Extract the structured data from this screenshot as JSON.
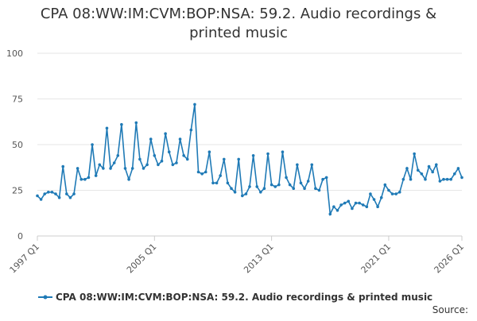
{
  "chart_data": {
    "type": "line",
    "title": "CPA 08:WW:IM:CVM:BOP:NSA: 59.2. Audio recordings & printed music",
    "source_label": "Source:",
    "categories": [
      "1997 Q1",
      null,
      null,
      null,
      null,
      null,
      null,
      null,
      null,
      null,
      null,
      null,
      null,
      null,
      null,
      null,
      null,
      null,
      null,
      null,
      null,
      null,
      null,
      null,
      null,
      null,
      null,
      null,
      null,
      null,
      null,
      null,
      "2005 Q1",
      null,
      null,
      null,
      null,
      null,
      null,
      null,
      null,
      null,
      null,
      null,
      null,
      null,
      null,
      null,
      null,
      null,
      null,
      null,
      null,
      null,
      null,
      null,
      null,
      null,
      null,
      null,
      null,
      null,
      null,
      null,
      "2013 Q1",
      null,
      null,
      null,
      null,
      null,
      null,
      null,
      null,
      null,
      null,
      null,
      null,
      null,
      null,
      null,
      null,
      null,
      null,
      null,
      null,
      null,
      null,
      null,
      null,
      null,
      null,
      null,
      null,
      null,
      null,
      null,
      "2021 Q1",
      null,
      null,
      null,
      null,
      null,
      null,
      null,
      null,
      null,
      null,
      null,
      null,
      null,
      null,
      null,
      null,
      null,
      null,
      null,
      "2026 Q1"
    ],
    "series": [
      {
        "name": "CPA 08:WW:IM:CVM:BOP:NSA: 59.2. Audio recordings & printed music",
        "color": "#1f7ab6",
        "values": [
          22,
          20,
          23,
          24,
          24,
          23,
          21,
          38,
          23,
          21,
          23,
          37,
          31,
          31,
          32,
          50,
          33,
          39,
          37,
          59,
          37,
          40,
          44,
          61,
          37,
          31,
          37,
          62,
          42,
          37,
          39,
          53,
          44,
          39,
          41,
          56,
          46,
          39,
          40,
          53,
          44,
          42,
          58,
          72,
          35,
          34,
          35,
          46,
          29,
          29,
          33,
          42,
          29,
          26,
          24,
          42,
          22,
          23,
          27,
          44,
          27,
          24,
          26,
          45,
          28,
          27,
          28,
          46,
          32,
          28,
          26,
          39,
          29,
          26,
          30,
          39,
          26,
          25,
          31,
          32,
          12,
          16,
          14,
          17,
          18,
          19,
          15,
          18,
          18,
          17,
          16,
          23,
          20,
          16,
          21,
          28,
          25,
          23,
          23,
          24,
          31,
          37,
          31,
          45,
          36,
          34,
          31,
          38,
          35,
          39,
          30,
          31,
          31,
          31,
          34,
          37,
          32
        ]
      }
    ],
    "ylim": [
      0,
      100
    ],
    "yticks": [
      0,
      25,
      50,
      75,
      100
    ],
    "grid": true
  }
}
